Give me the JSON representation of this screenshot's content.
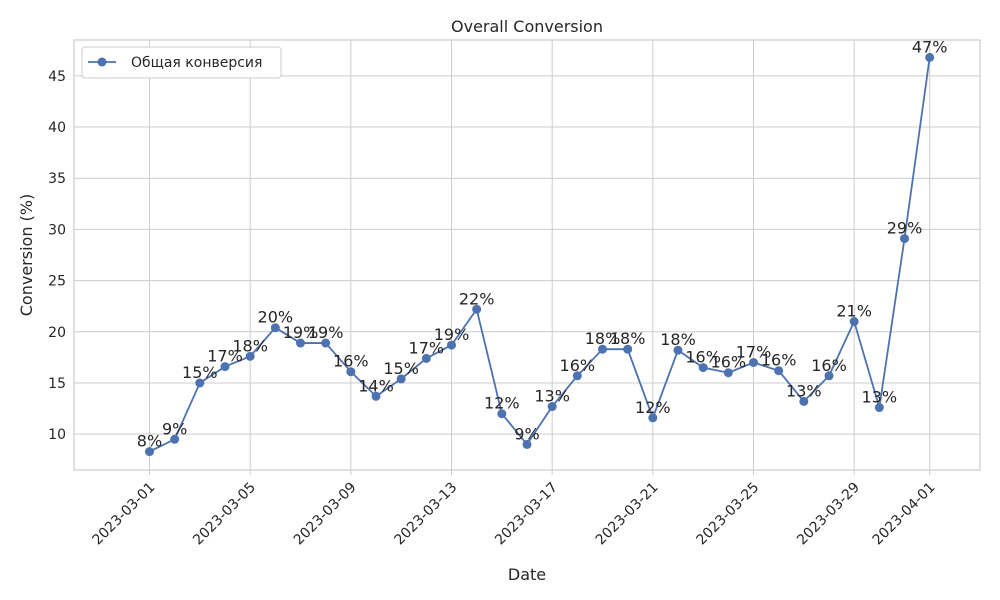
{
  "chart_data": {
    "type": "line",
    "title": "Overall Conversion",
    "xlabel": "Date",
    "ylabel": "Conversion (%)",
    "grid": true,
    "legend_position": "top-left",
    "ylim": [
      6.5,
      48.5
    ],
    "xlim": [
      "2023-02-26",
      "2023-04-03"
    ],
    "x_ticks": [
      "2023-03-01",
      "2023-03-05",
      "2023-03-09",
      "2023-03-13",
      "2023-03-17",
      "2023-03-21",
      "2023-03-25",
      "2023-03-29",
      "2023-04-01"
    ],
    "y_ticks": [
      10,
      15,
      20,
      25,
      30,
      35,
      40,
      45
    ],
    "colors": {
      "line": "#4c72b0",
      "grid": "#cccccc",
      "frame": "#cccccc"
    },
    "series": [
      {
        "name": "Общая конверсия",
        "marker": "circle",
        "x": [
          "2023-03-01",
          "2023-03-02",
          "2023-03-03",
          "2023-03-04",
          "2023-03-05",
          "2023-03-06",
          "2023-03-07",
          "2023-03-08",
          "2023-03-09",
          "2023-03-10",
          "2023-03-11",
          "2023-03-12",
          "2023-03-13",
          "2023-03-14",
          "2023-03-15",
          "2023-03-16",
          "2023-03-17",
          "2023-03-18",
          "2023-03-19",
          "2023-03-20",
          "2023-03-21",
          "2023-03-22",
          "2023-03-23",
          "2023-03-24",
          "2023-03-25",
          "2023-03-26",
          "2023-03-27",
          "2023-03-28",
          "2023-03-29",
          "2023-03-30",
          "2023-03-31",
          "2023-04-01"
        ],
        "values": [
          8.3,
          9.5,
          15.0,
          16.6,
          17.6,
          20.4,
          18.9,
          18.9,
          16.1,
          13.7,
          15.4,
          17.4,
          18.7,
          22.2,
          12.0,
          9.0,
          12.7,
          15.7,
          18.3,
          18.3,
          11.6,
          18.2,
          16.5,
          16.0,
          17.0,
          16.2,
          13.2,
          15.7,
          21.0,
          12.6,
          29.1,
          46.8
        ],
        "labels": [
          "8%",
          "9%",
          "15%",
          "17%",
          "18%",
          "20%",
          "19%",
          "19%",
          "16%",
          "14%",
          "15%",
          "17%",
          "19%",
          "22%",
          "12%",
          "9%",
          "13%",
          "16%",
          "18%",
          "18%",
          "12%",
          "18%",
          "16%",
          "16%",
          "17%",
          "16%",
          "13%",
          "16%",
          "21%",
          "13%",
          "29%",
          "47%"
        ]
      }
    ]
  }
}
